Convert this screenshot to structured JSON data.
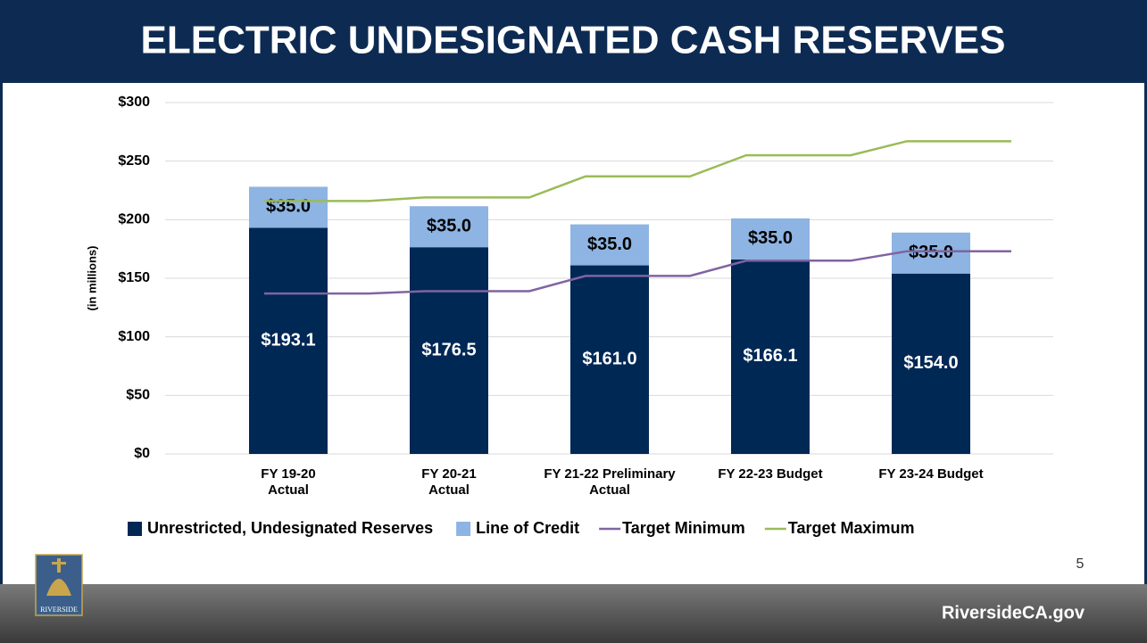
{
  "chart_data": {
    "type": "bar",
    "title": "ELECTRIC UNDESIGNATED CASH RESERVES",
    "ylabel": "(in millions)",
    "categories": [
      "FY 19-20\nActual",
      "FY 20-21\nActual",
      "FY 21-22 Preliminary\nActual",
      "FY 22-23 Budget",
      "FY 23-24 Budget"
    ],
    "series": [
      {
        "name": "Unrestricted, Undesignated Reserves",
        "color": "#002855",
        "kind": "bar",
        "values": [
          193.1,
          176.5,
          161.0,
          166.1,
          154.0
        ],
        "value_labels": [
          "$193.1",
          "$176.5",
          "$161.0",
          "$166.1",
          "$154.0"
        ]
      },
      {
        "name": "Line of Credit",
        "color": "#8db4e2",
        "kind": "bar",
        "values": [
          35.0,
          35.0,
          35.0,
          35.0,
          35.0
        ],
        "value_labels": [
          "$35.0",
          "$35.0",
          "$35.0",
          "$35.0",
          "$35.0"
        ]
      },
      {
        "name": "Target Minimum",
        "color": "#8064a2",
        "kind": "line",
        "values": [
          137,
          139,
          152,
          165,
          173
        ]
      },
      {
        "name": "Target Maximum",
        "color": "#9bbb59",
        "kind": "line",
        "values": [
          216,
          219,
          237,
          255,
          267
        ]
      }
    ],
    "stacked": true,
    "ylim": [
      0,
      300
    ],
    "yticks": [
      {
        "value": 0,
        "label": "$0"
      },
      {
        "value": 50,
        "label": "$50"
      },
      {
        "value": 100,
        "label": "$100"
      },
      {
        "value": 150,
        "label": "$150"
      },
      {
        "value": 200,
        "label": "$200"
      },
      {
        "value": 250,
        "label": "$250"
      },
      {
        "value": 300,
        "label": "$300"
      }
    ],
    "grid": true,
    "legend": "bottom"
  },
  "page_number": "5",
  "footer_url": "RiversideCA.gov",
  "logo_text": "RIVERSIDE"
}
